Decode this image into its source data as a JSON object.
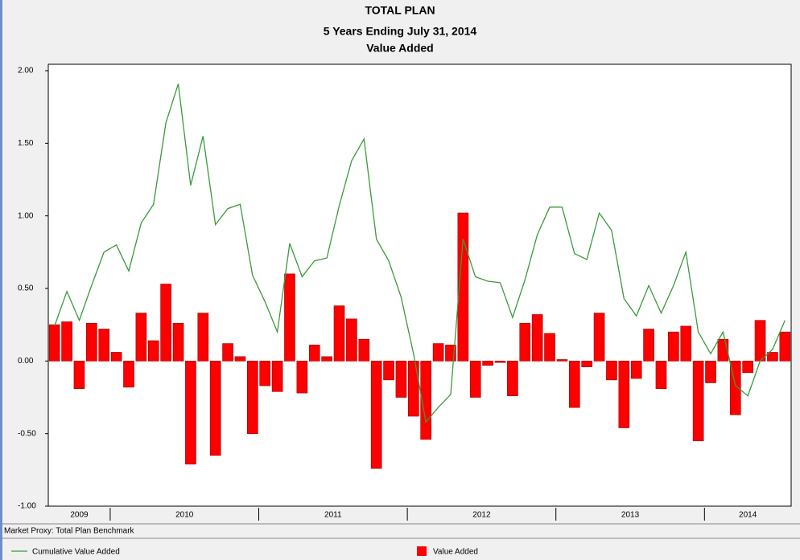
{
  "chart_data": {
    "type": "bar_line",
    "title": "TOTAL PLAN",
    "subtitle": "5 Years Ending July 31, 2014",
    "subtitle2": "Value Added",
    "footnote": "Market Proxy: Total Plan Benchmark",
    "categories": [
      "2009",
      "2009",
      "2009",
      "2009",
      "2009",
      "2010",
      "2010",
      "2010",
      "2010",
      "2010",
      "2010",
      "2010",
      "2010",
      "2010",
      "2010",
      "2010",
      "2010",
      "2011",
      "2011",
      "2011",
      "2011",
      "2011",
      "2011",
      "2011",
      "2011",
      "2011",
      "2011",
      "2011",
      "2011",
      "2012",
      "2012",
      "2012",
      "2012",
      "2012",
      "2012",
      "2012",
      "2012",
      "2012",
      "2012",
      "2012",
      "2012",
      "2013",
      "2013",
      "2013",
      "2013",
      "2013",
      "2013",
      "2013",
      "2013",
      "2013",
      "2013",
      "2013",
      "2013",
      "2014",
      "2014",
      "2014",
      "2014",
      "2014",
      "2014",
      "2014"
    ],
    "series": [
      {
        "name": "Value Added",
        "kind": "bar",
        "color": "#ff0000",
        "values": [
          0.25,
          0.27,
          -0.19,
          0.26,
          0.22,
          0.06,
          -0.18,
          0.33,
          0.14,
          0.53,
          0.26,
          -0.71,
          0.33,
          -0.65,
          0.12,
          0.03,
          -0.5,
          -0.17,
          -0.21,
          0.6,
          -0.22,
          0.11,
          0.03,
          0.38,
          0.29,
          0.15,
          -0.74,
          -0.13,
          -0.25,
          -0.38,
          -0.54,
          0.12,
          0.11,
          1.02,
          -0.25,
          -0.03,
          -0.01,
          -0.24,
          0.26,
          0.32,
          0.19,
          0.01,
          -0.32,
          -0.04,
          0.33,
          -0.13,
          -0.46,
          -0.12,
          0.22,
          -0.19,
          0.2,
          0.24,
          -0.55,
          -0.15,
          0.15,
          -0.37,
          -0.08,
          0.28,
          0.06,
          0.2
        ]
      },
      {
        "name": "Cumulative Value Added",
        "kind": "line",
        "color": "#3a9a3a",
        "values": [
          0.24,
          0.48,
          0.28,
          0.52,
          0.75,
          0.8,
          0.62,
          0.95,
          1.08,
          1.64,
          1.91,
          1.21,
          1.55,
          0.94,
          1.05,
          1.08,
          0.59,
          0.41,
          0.2,
          0.81,
          0.58,
          0.69,
          0.71,
          1.07,
          1.38,
          1.53,
          0.84,
          0.69,
          0.44,
          0.05,
          -0.42,
          -0.32,
          -0.23,
          0.84,
          0.58,
          0.55,
          0.54,
          0.3,
          0.56,
          0.87,
          1.06,
          1.06,
          0.74,
          0.7,
          1.02,
          0.9,
          0.43,
          0.31,
          0.52,
          0.33,
          0.52,
          0.75,
          0.2,
          0.05,
          0.2,
          -0.17,
          -0.24,
          0.0,
          0.08,
          0.28
        ]
      }
    ],
    "ylim": [
      -1,
      2
    ],
    "yticks": [
      {
        "value": -1,
        "label": "-1.00"
      },
      {
        "value": -0.5,
        "label": "-0.50"
      },
      {
        "value": 0,
        "label": "0.00"
      },
      {
        "value": 0.5,
        "label": "0.50"
      },
      {
        "value": 1,
        "label": "1.00"
      },
      {
        "value": 1.5,
        "label": "1.50"
      },
      {
        "value": 2,
        "label": "2.00"
      }
    ]
  }
}
